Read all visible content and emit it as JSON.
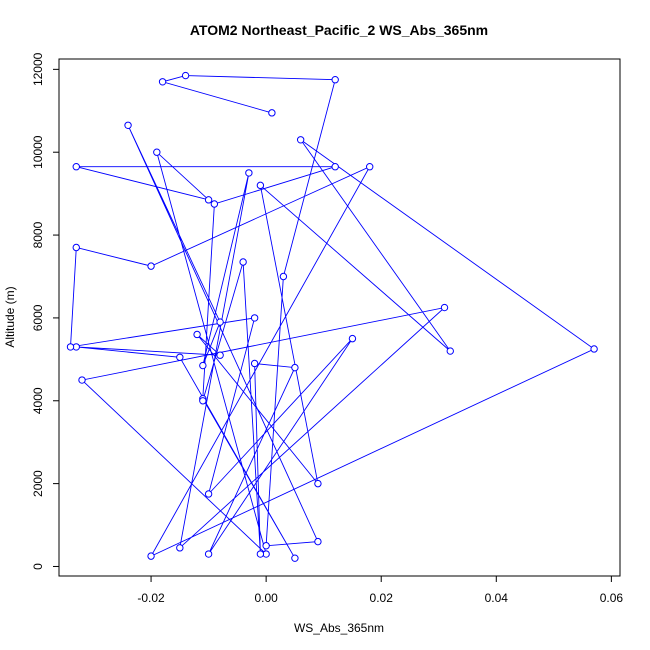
{
  "chart_data": {
    "type": "line",
    "title": "ATOM2 Northeast_Pacific_2 WS_Abs_365nm",
    "xlabel": "WS_Abs_365nm",
    "ylabel": "Altitude (m)",
    "xlim": [
      -0.036,
      0.0615
    ],
    "ylim": [
      -230,
      12250
    ],
    "x_ticks": [
      -0.02,
      0.0,
      0.02,
      0.04,
      0.06
    ],
    "x_tick_labels": [
      "-0.02",
      "0.00",
      "0.02",
      "0.04",
      "0.06"
    ],
    "y_ticks": [
      0,
      2000,
      4000,
      6000,
      8000,
      10000,
      12000
    ],
    "y_tick_labels": [
      "0",
      "2000",
      "4000",
      "6000",
      "8000",
      "10000",
      "12000"
    ],
    "grid": false,
    "legend": "none",
    "series": [
      {
        "color": "#0000ff",
        "marker": "open-circle",
        "points": [
          {
            "x": 0.001,
            "y": 10950
          },
          {
            "x": -0.018,
            "y": 11700
          },
          {
            "x": -0.014,
            "y": 11850
          },
          {
            "x": 0.012,
            "y": 11750
          },
          {
            "x": 0.003,
            "y": 7000
          },
          {
            "x": 0.0,
            "y": 500
          },
          {
            "x": 0.009,
            "y": 600
          },
          {
            "x": -0.024,
            "y": 10650
          },
          {
            "x": -0.008,
            "y": 5900
          },
          {
            "x": -0.011,
            "y": 4850
          },
          {
            "x": -0.003,
            "y": 9500
          },
          {
            "x": -0.015,
            "y": 450
          },
          {
            "x": 0.031,
            "y": 6250
          },
          {
            "x": -0.032,
            "y": 4500
          },
          {
            "x": 0.0,
            "y": 300
          },
          {
            "x": -0.019,
            "y": 10000
          },
          {
            "x": -0.01,
            "y": 8850
          },
          {
            "x": -0.033,
            "y": 9650
          },
          {
            "x": 0.012,
            "y": 9650
          },
          {
            "x": -0.009,
            "y": 8750
          },
          {
            "x": -0.011,
            "y": 4050
          },
          {
            "x": 0.005,
            "y": 200
          },
          {
            "x": -0.015,
            "y": 5050
          },
          {
            "x": -0.033,
            "y": 5300
          },
          {
            "x": -0.008,
            "y": 5100
          },
          {
            "x": -0.012,
            "y": 5600
          },
          {
            "x": 0.009,
            "y": 2000
          },
          {
            "x": -0.001,
            "y": 9200
          },
          {
            "x": 0.032,
            "y": 5200
          },
          {
            "x": 0.006,
            "y": 10300
          },
          {
            "x": 0.057,
            "y": 5250
          },
          {
            "x": -0.02,
            "y": 250
          },
          {
            "x": 0.018,
            "y": 9650
          },
          {
            "x": -0.02,
            "y": 7250
          },
          {
            "x": -0.033,
            "y": 7700
          },
          {
            "x": -0.034,
            "y": 5300
          },
          {
            "x": -0.002,
            "y": 6000
          },
          {
            "x": -0.01,
            "y": 1750
          },
          {
            "x": 0.015,
            "y": 5500
          },
          {
            "x": -0.01,
            "y": 300
          },
          {
            "x": 0.005,
            "y": 4800
          },
          {
            "x": -0.002,
            "y": 4900
          },
          {
            "x": -0.001,
            "y": 300
          },
          {
            "x": -0.004,
            "y": 7350
          },
          {
            "x": -0.011,
            "y": 4000
          }
        ]
      }
    ]
  }
}
